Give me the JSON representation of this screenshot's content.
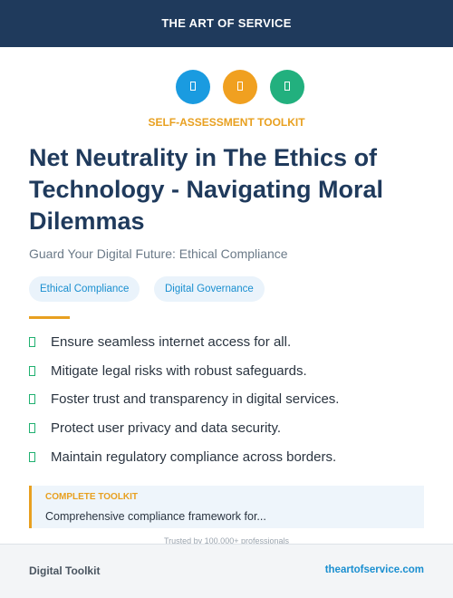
{
  "header": {
    "brand": "THE ART OF SERVICE"
  },
  "badge": "SELF-ASSESSMENT TOOLKIT",
  "title": "Net Neutrality in The Ethics of Technology - Navigating Moral Dilemmas",
  "subtitle": "Guard Your Digital Future: Ethical Compliance",
  "tags": [
    "Ethical Compliance",
    "Digital Governance"
  ],
  "benefits": [
    "Ensure seamless internet access for all.",
    "Mitigate legal risks with robust safeguards.",
    "Foster trust and transparency in digital services.",
    "Protect user privacy and data security.",
    "Maintain regulatory compliance across borders."
  ],
  "callout": {
    "label": "COMPLETE TOOLKIT",
    "text": "Comprehensive compliance framework for..."
  },
  "trust": "Trusted by 100,000+ professionals",
  "footer": {
    "left": "Digital Toolkit",
    "right": "theartofservice.com"
  }
}
